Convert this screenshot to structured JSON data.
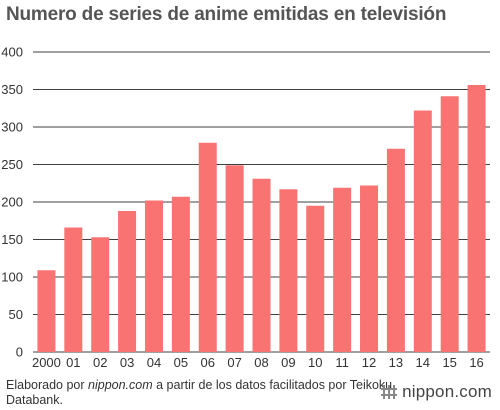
{
  "title": "Numero de series de anime emitidas en televisión",
  "footer": {
    "prefix": "Elaborado por ",
    "source_italic": "nippon.com",
    "suffix": " a partir de los datos facilitados por Teikoku Databank."
  },
  "brand": {
    "text": "nippon.com"
  },
  "colors": {
    "bar": "#f97373",
    "grid": "#000000",
    "text": "#333333"
  },
  "chart_data": {
    "type": "bar",
    "title": "Numero de series de anime emitidas en televisión",
    "xlabel": "",
    "ylabel": "",
    "categories": [
      "2000",
      "01",
      "02",
      "03",
      "04",
      "05",
      "06",
      "07",
      "08",
      "09",
      "10",
      "11",
      "12",
      "13",
      "14",
      "15",
      "16"
    ],
    "values": [
      109,
      166,
      153,
      188,
      202,
      207,
      279,
      249,
      231,
      217,
      195,
      219,
      222,
      271,
      322,
      341,
      356
    ],
    "ylim": [
      0,
      400
    ],
    "yticks": [
      0,
      50,
      100,
      150,
      200,
      250,
      300,
      350,
      400
    ],
    "grid": "horizontal",
    "legend": "none"
  }
}
